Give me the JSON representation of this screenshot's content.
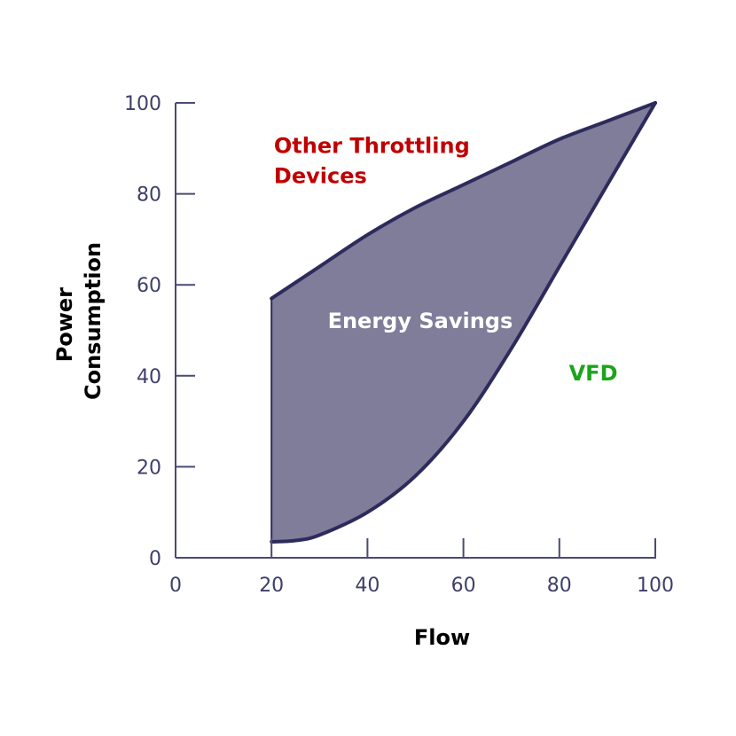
{
  "chart_data": {
    "type": "area",
    "xlabel": "Flow",
    "ylabel_lines": [
      "Power",
      "Consumption"
    ],
    "xlim": [
      0,
      100
    ],
    "ylim": [
      0,
      100
    ],
    "x_ticks": [
      0,
      20,
      40,
      60,
      80,
      100
    ],
    "y_ticks": [
      0,
      20,
      40,
      60,
      80,
      100
    ],
    "grid": false,
    "fill_color": "#7f7d9a",
    "line_color": "#2d2b5b",
    "axis_color": "#4a4a72",
    "series": [
      {
        "name": "Other Throttling Devices",
        "color": "#c00000",
        "x": [
          20,
          30,
          40,
          50,
          60,
          70,
          80,
          90,
          100
        ],
        "y": [
          57,
          64,
          71,
          77,
          82,
          87,
          92,
          96,
          100
        ]
      },
      {
        "name": "VFD",
        "color": "#1aa51a",
        "x": [
          20,
          25,
          30,
          40,
          50,
          60,
          70,
          80,
          90,
          100
        ],
        "y": [
          3.5,
          3.8,
          5,
          10,
          18,
          30,
          46,
          64,
          82,
          100
        ]
      }
    ],
    "annotations": [
      {
        "text": "Energy Savings",
        "x": 51,
        "y": 50.5,
        "color": "#ffffff"
      }
    ],
    "series_label_positions": [
      {
        "lines": [
          "Other Throttling",
          "Devices"
        ],
        "x": 20.5,
        "y": 89,
        "color": "#c00000"
      },
      {
        "lines": [
          "VFD"
        ],
        "x": 82,
        "y": 39,
        "color": "#1aa51a"
      }
    ]
  }
}
